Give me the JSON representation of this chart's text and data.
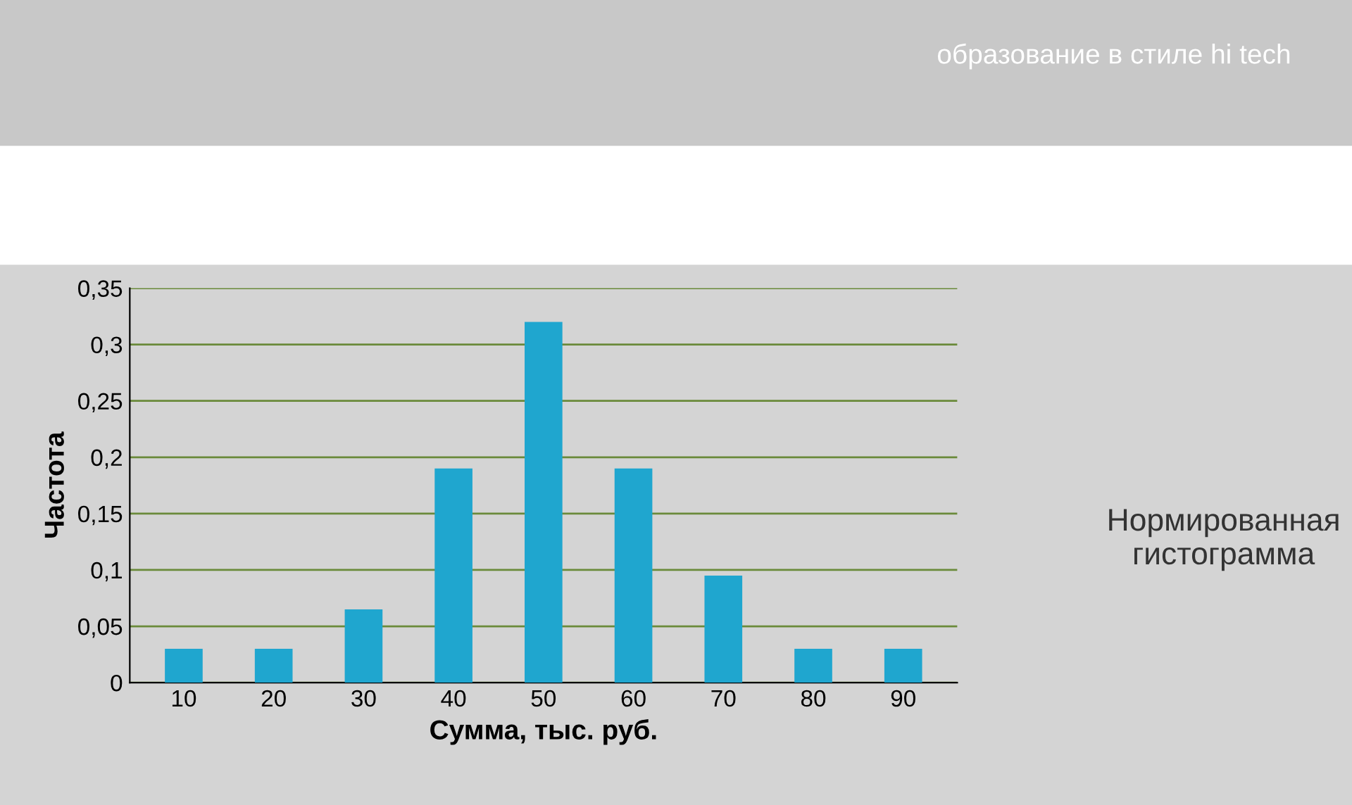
{
  "chart_data": {
    "type": "bar",
    "categories": [
      "10",
      "20",
      "30",
      "40",
      "50",
      "60",
      "70",
      "80",
      "90"
    ],
    "values": [
      0.03,
      0.03,
      0.065,
      0.19,
      0.32,
      0.19,
      0.095,
      0.03,
      0.03
    ],
    "color": "#1fa6cf",
    "xlabel": "Сумма, тыс. руб.",
    "ylabel": "Частота",
    "ylim": [
      0,
      0.35
    ],
    "yticks": [
      {
        "value": 0,
        "label": "0"
      },
      {
        "value": 0.05,
        "label": "0,05"
      },
      {
        "value": 0.1,
        "label": "0,1"
      },
      {
        "value": 0.15,
        "label": "0,15"
      },
      {
        "value": 0.2,
        "label": "0,2"
      },
      {
        "value": 0.25,
        "label": "0,25"
      },
      {
        "value": 0.3,
        "label": "0,3"
      },
      {
        "value": 0.35,
        "label": "0,35"
      }
    ],
    "grid": "y",
    "annotations": [
      "Нормированная\nгистограмма",
      "образование в стиле hi tech"
    ]
  }
}
